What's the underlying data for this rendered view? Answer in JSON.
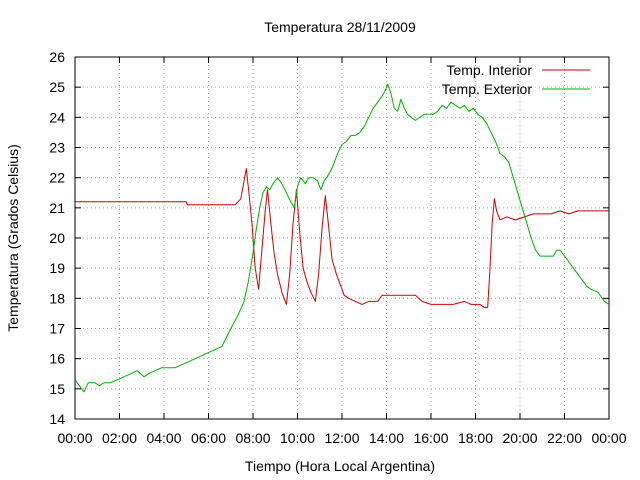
{
  "chart_data": {
    "type": "line",
    "title": "Temperatura 28/11/2009",
    "xlabel": "Tiempo (Hora Local Argentina)",
    "ylabel": "Temperatura (Grados Celsius)",
    "xlim": [
      0,
      24
    ],
    "ylim": [
      14,
      26
    ],
    "grid": true,
    "legend_position": "top-right",
    "x_ticks": [
      {
        "value": 0,
        "label": "00:00"
      },
      {
        "value": 2,
        "label": "02:00"
      },
      {
        "value": 4,
        "label": "04:00"
      },
      {
        "value": 6,
        "label": "06:00"
      },
      {
        "value": 8,
        "label": "08:00"
      },
      {
        "value": 10,
        "label": "10:00"
      },
      {
        "value": 12,
        "label": "12:00"
      },
      {
        "value": 14,
        "label": "14:00"
      },
      {
        "value": 16,
        "label": "16:00"
      },
      {
        "value": 18,
        "label": "18:00"
      },
      {
        "value": 20,
        "label": "20:00"
      },
      {
        "value": 22,
        "label": "22:00"
      },
      {
        "value": 24,
        "label": "00:00"
      }
    ],
    "y_ticks": [
      {
        "value": 14,
        "label": "14"
      },
      {
        "value": 15,
        "label": "15"
      },
      {
        "value": 16,
        "label": "16"
      },
      {
        "value": 17,
        "label": "17"
      },
      {
        "value": 18,
        "label": "18"
      },
      {
        "value": 19,
        "label": "19"
      },
      {
        "value": 20,
        "label": "20"
      },
      {
        "value": 21,
        "label": "21"
      },
      {
        "value": 22,
        "label": "22"
      },
      {
        "value": 23,
        "label": "23"
      },
      {
        "value": 24,
        "label": "24"
      },
      {
        "value": 25,
        "label": "25"
      },
      {
        "value": 26,
        "label": "26"
      }
    ],
    "series": [
      {
        "name": "Temp. Interior",
        "color": "#cc0000",
        "points": [
          [
            0,
            21.2
          ],
          [
            2,
            21.2
          ],
          [
            4,
            21.2
          ],
          [
            5.0,
            21.2
          ],
          [
            5.05,
            21.1
          ],
          [
            6,
            21.1
          ],
          [
            7.2,
            21.1
          ],
          [
            7.45,
            21.3
          ],
          [
            7.6,
            21.9
          ],
          [
            7.7,
            22.3
          ],
          [
            7.8,
            21.6
          ],
          [
            7.95,
            20.5
          ],
          [
            8.1,
            19.0
          ],
          [
            8.25,
            18.3
          ],
          [
            8.4,
            19.6
          ],
          [
            8.55,
            20.9
          ],
          [
            8.65,
            21.6
          ],
          [
            8.8,
            20.5
          ],
          [
            8.95,
            19.5
          ],
          [
            9.1,
            18.8
          ],
          [
            9.3,
            18.2
          ],
          [
            9.5,
            17.8
          ],
          [
            9.65,
            18.8
          ],
          [
            9.8,
            20.5
          ],
          [
            9.95,
            21.6
          ],
          [
            10.1,
            20.2
          ],
          [
            10.25,
            19.0
          ],
          [
            10.45,
            18.5
          ],
          [
            10.6,
            18.2
          ],
          [
            10.8,
            17.9
          ],
          [
            10.95,
            18.8
          ],
          [
            11.1,
            20.3
          ],
          [
            11.25,
            21.4
          ],
          [
            11.4,
            20.4
          ],
          [
            11.55,
            19.3
          ],
          [
            11.75,
            18.8
          ],
          [
            11.95,
            18.4
          ],
          [
            12.1,
            18.1
          ],
          [
            12.3,
            18.0
          ],
          [
            12.6,
            17.9
          ],
          [
            12.9,
            17.8
          ],
          [
            13.2,
            17.9
          ],
          [
            13.6,
            17.9
          ],
          [
            13.8,
            18.1
          ],
          [
            14.5,
            18.1
          ],
          [
            15.3,
            18.1
          ],
          [
            15.6,
            17.9
          ],
          [
            16.0,
            17.8
          ],
          [
            17.0,
            17.8
          ],
          [
            17.5,
            17.9
          ],
          [
            17.8,
            17.8
          ],
          [
            18.2,
            17.8
          ],
          [
            18.4,
            17.7
          ],
          [
            18.55,
            17.7
          ],
          [
            18.65,
            19.0
          ],
          [
            18.75,
            20.5
          ],
          [
            18.85,
            21.3
          ],
          [
            18.95,
            20.9
          ],
          [
            19.1,
            20.6
          ],
          [
            19.4,
            20.7
          ],
          [
            19.8,
            20.6
          ],
          [
            20.2,
            20.7
          ],
          [
            20.6,
            20.8
          ],
          [
            21.0,
            20.8
          ],
          [
            21.4,
            20.8
          ],
          [
            21.8,
            20.9
          ],
          [
            22.2,
            20.8
          ],
          [
            22.6,
            20.9
          ],
          [
            23.2,
            20.9
          ],
          [
            24.0,
            20.9
          ]
        ]
      },
      {
        "name": "Temp. Exterior",
        "color": "#00b000",
        "points": [
          [
            0,
            15.3
          ],
          [
            0.2,
            15.1
          ],
          [
            0.4,
            14.9
          ],
          [
            0.6,
            15.2
          ],
          [
            0.9,
            15.2
          ],
          [
            1.1,
            15.1
          ],
          [
            1.3,
            15.2
          ],
          [
            1.6,
            15.2
          ],
          [
            1.9,
            15.3
          ],
          [
            2.2,
            15.4
          ],
          [
            2.5,
            15.5
          ],
          [
            2.8,
            15.6
          ],
          [
            3.1,
            15.4
          ],
          [
            3.3,
            15.5
          ],
          [
            3.6,
            15.6
          ],
          [
            3.9,
            15.7
          ],
          [
            4.2,
            15.7
          ],
          [
            4.5,
            15.7
          ],
          [
            4.8,
            15.8
          ],
          [
            5.1,
            15.9
          ],
          [
            5.4,
            16.0
          ],
          [
            5.7,
            16.1
          ],
          [
            6.0,
            16.2
          ],
          [
            6.3,
            16.3
          ],
          [
            6.6,
            16.4
          ],
          [
            6.8,
            16.7
          ],
          [
            7.0,
            17.0
          ],
          [
            7.3,
            17.4
          ],
          [
            7.6,
            17.9
          ],
          [
            7.8,
            18.6
          ],
          [
            8.0,
            19.5
          ],
          [
            8.15,
            20.3
          ],
          [
            8.3,
            21.0
          ],
          [
            8.45,
            21.5
          ],
          [
            8.6,
            21.7
          ],
          [
            8.75,
            21.6
          ],
          [
            8.9,
            21.8
          ],
          [
            9.1,
            22.0
          ],
          [
            9.3,
            21.8
          ],
          [
            9.5,
            21.5
          ],
          [
            9.7,
            21.2
          ],
          [
            9.85,
            21.0
          ],
          [
            10.0,
            21.7
          ],
          [
            10.15,
            22.0
          ],
          [
            10.35,
            21.8
          ],
          [
            10.5,
            22.0
          ],
          [
            10.7,
            22.0
          ],
          [
            10.9,
            21.9
          ],
          [
            11.05,
            21.6
          ],
          [
            11.2,
            21.9
          ],
          [
            11.4,
            22.1
          ],
          [
            11.6,
            22.4
          ],
          [
            11.8,
            22.8
          ],
          [
            12.0,
            23.1
          ],
          [
            12.2,
            23.2
          ],
          [
            12.4,
            23.4
          ],
          [
            12.6,
            23.4
          ],
          [
            12.8,
            23.5
          ],
          [
            13.0,
            23.7
          ],
          [
            13.2,
            24.0
          ],
          [
            13.4,
            24.3
          ],
          [
            13.6,
            24.5
          ],
          [
            13.8,
            24.7
          ],
          [
            13.95,
            24.9
          ],
          [
            14.05,
            25.1
          ],
          [
            14.2,
            24.8
          ],
          [
            14.35,
            24.3
          ],
          [
            14.5,
            24.2
          ],
          [
            14.65,
            24.6
          ],
          [
            14.8,
            24.3
          ],
          [
            14.95,
            24.1
          ],
          [
            15.1,
            24.0
          ],
          [
            15.3,
            23.9
          ],
          [
            15.5,
            24.0
          ],
          [
            15.7,
            24.1
          ],
          [
            15.9,
            24.1
          ],
          [
            16.1,
            24.1
          ],
          [
            16.3,
            24.2
          ],
          [
            16.5,
            24.4
          ],
          [
            16.7,
            24.3
          ],
          [
            16.9,
            24.5
          ],
          [
            17.1,
            24.4
          ],
          [
            17.3,
            24.3
          ],
          [
            17.5,
            24.4
          ],
          [
            17.7,
            24.2
          ],
          [
            17.9,
            24.3
          ],
          [
            18.1,
            24.1
          ],
          [
            18.3,
            24.0
          ],
          [
            18.5,
            23.8
          ],
          [
            18.7,
            23.5
          ],
          [
            18.9,
            23.2
          ],
          [
            19.1,
            22.8
          ],
          [
            19.3,
            22.7
          ],
          [
            19.5,
            22.5
          ],
          [
            19.7,
            22.0
          ],
          [
            19.9,
            21.5
          ],
          [
            20.1,
            21.0
          ],
          [
            20.3,
            20.5
          ],
          [
            20.5,
            20.0
          ],
          [
            20.7,
            19.6
          ],
          [
            20.9,
            19.4
          ],
          [
            21.2,
            19.4
          ],
          [
            21.5,
            19.4
          ],
          [
            21.65,
            19.6
          ],
          [
            21.8,
            19.6
          ],
          [
            22.0,
            19.4
          ],
          [
            22.2,
            19.2
          ],
          [
            22.4,
            19.0
          ],
          [
            22.6,
            18.8
          ],
          [
            22.8,
            18.6
          ],
          [
            23.0,
            18.4
          ],
          [
            23.2,
            18.3
          ],
          [
            23.5,
            18.2
          ],
          [
            23.8,
            17.9
          ],
          [
            24.0,
            17.8
          ]
        ]
      }
    ]
  }
}
